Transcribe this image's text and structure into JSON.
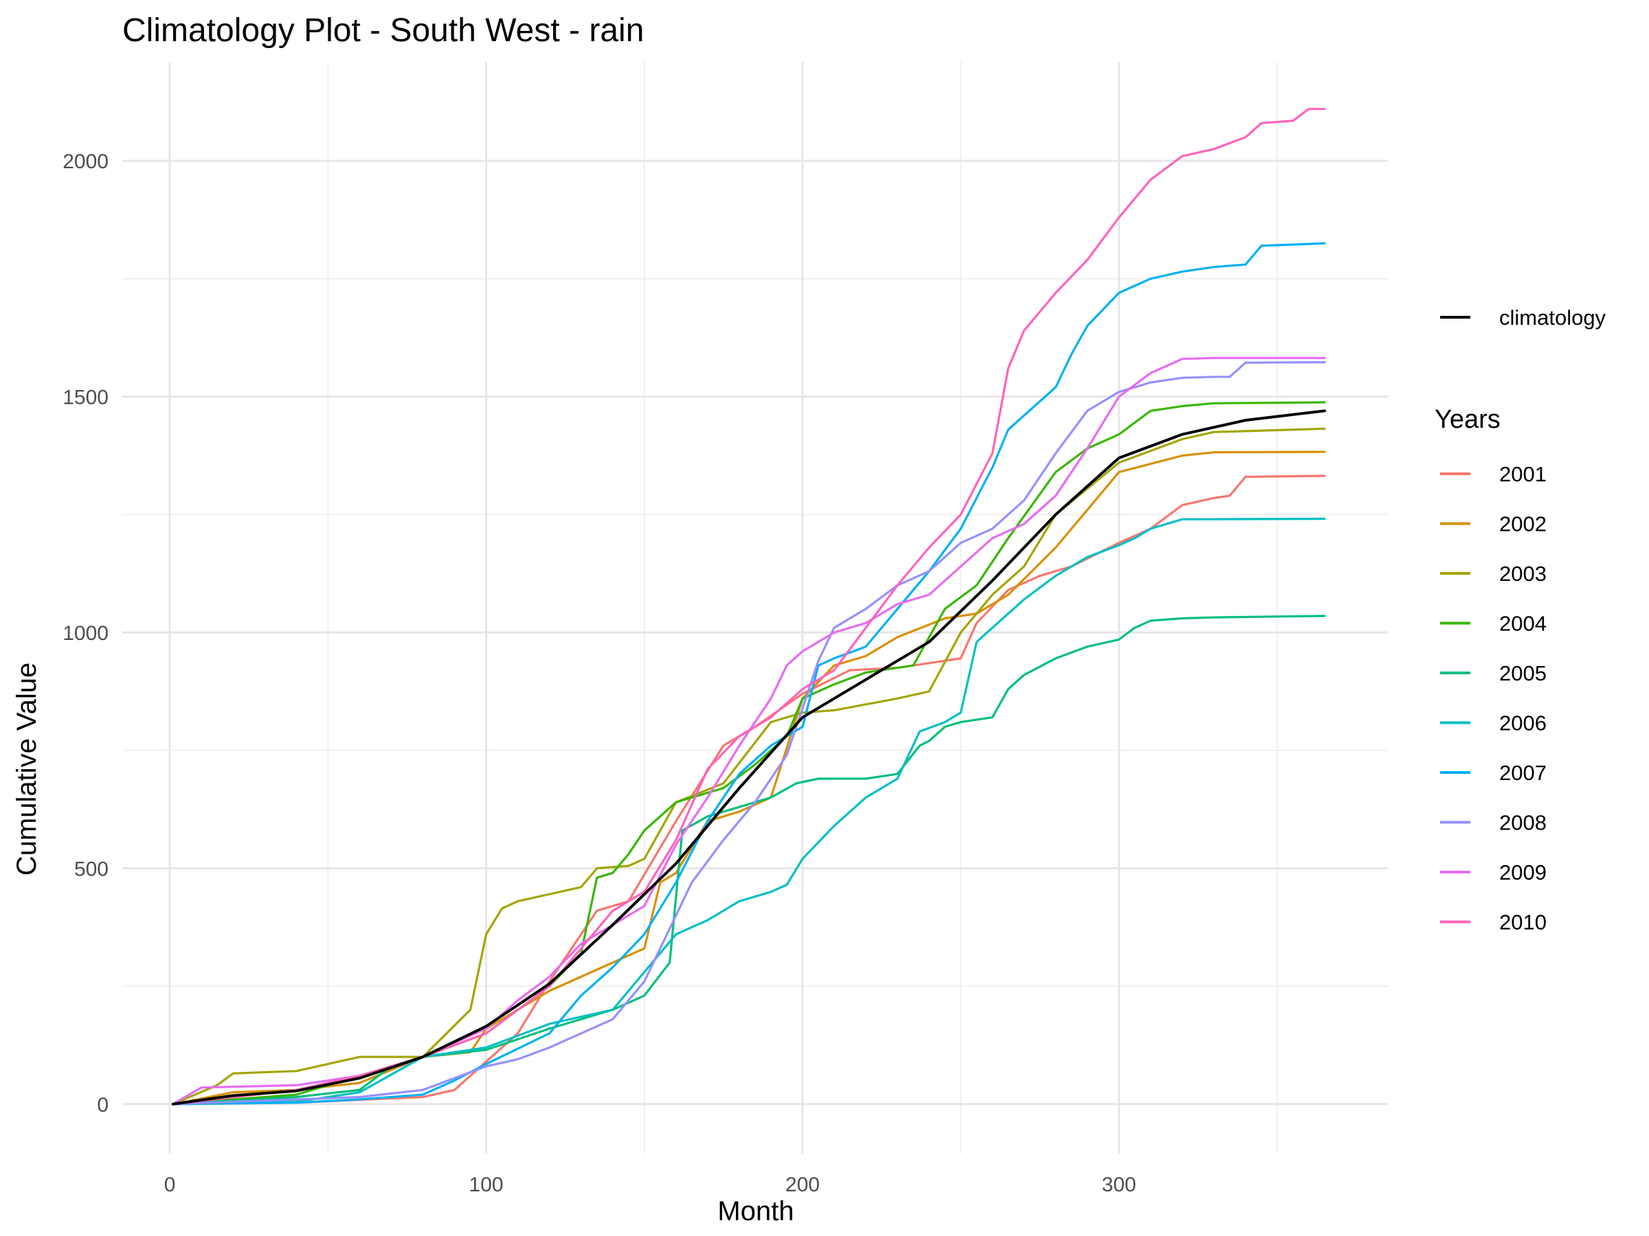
{
  "chart_data": {
    "type": "line",
    "title": "Climatology Plot - South West - rain",
    "xlabel": "Month",
    "ylabel": "Cumulative Value",
    "xlim": [
      -15,
      385
    ],
    "ylim": [
      -105,
      2210
    ],
    "x_ticks": [
      0,
      100,
      200,
      300
    ],
    "y_ticks": [
      0,
      500,
      1000,
      1500,
      2000
    ],
    "grid": true,
    "legend": {
      "position": "right",
      "climatology_label": "climatology",
      "title": "Years"
    },
    "climatology": {
      "name": "climatology",
      "color": "#000000",
      "x": [
        1,
        20,
        40,
        60,
        80,
        100,
        120,
        140,
        160,
        180,
        200,
        220,
        240,
        260,
        280,
        300,
        320,
        340,
        365
      ],
      "y": [
        0,
        18,
        28,
        55,
        100,
        165,
        255,
        380,
        510,
        670,
        820,
        900,
        980,
        1110,
        1250,
        1370,
        1420,
        1450,
        1470
      ]
    },
    "series": [
      {
        "name": "2001",
        "color": "#F8766D",
        "x": [
          1,
          40,
          80,
          90,
          100,
          110,
          120,
          135,
          145,
          160,
          175,
          185,
          200,
          215,
          230,
          250,
          255,
          265,
          275,
          285,
          300,
          310,
          320,
          330,
          335,
          340,
          365
        ],
        "y": [
          0,
          3,
          15,
          30,
          90,
          150,
          260,
          410,
          430,
          600,
          760,
          800,
          870,
          920,
          925,
          945,
          1020,
          1090,
          1120,
          1140,
          1190,
          1220,
          1270,
          1285,
          1290,
          1330,
          1332
        ]
      },
      {
        "name": "2002",
        "color": "#D89000",
        "x": [
          1,
          20,
          40,
          60,
          80,
          95,
          100,
          120,
          140,
          150,
          155,
          160,
          170,
          180,
          190,
          200,
          210,
          220,
          230,
          245,
          255,
          265,
          280,
          300,
          320,
          330,
          365
        ],
        "y": [
          0,
          25,
          30,
          45,
          100,
          110,
          160,
          240,
          300,
          330,
          470,
          490,
          600,
          620,
          650,
          860,
          930,
          950,
          990,
          1030,
          1040,
          1080,
          1180,
          1340,
          1375,
          1382,
          1383
        ]
      },
      {
        "name": "2003",
        "color": "#A3A500",
        "x": [
          1,
          15,
          20,
          40,
          60,
          80,
          95,
          100,
          105,
          110,
          130,
          135,
          145,
          150,
          160,
          175,
          190,
          200,
          210,
          230,
          240,
          250,
          260,
          270,
          280,
          300,
          320,
          330,
          365
        ],
        "y": [
          0,
          40,
          65,
          70,
          100,
          100,
          200,
          360,
          415,
          430,
          460,
          500,
          505,
          520,
          640,
          680,
          810,
          830,
          835,
          860,
          875,
          1000,
          1080,
          1140,
          1250,
          1360,
          1410,
          1425,
          1432
        ]
      },
      {
        "name": "2004",
        "color": "#39B600",
        "x": [
          1,
          40,
          60,
          80,
          100,
          120,
          130,
          135,
          140,
          145,
          150,
          160,
          175,
          185,
          195,
          200,
          210,
          220,
          235,
          245,
          255,
          265,
          280,
          290,
          300,
          310,
          320,
          330,
          365
        ],
        "y": [
          0,
          20,
          60,
          100,
          150,
          250,
          320,
          480,
          490,
          530,
          580,
          640,
          670,
          720,
          780,
          860,
          890,
          915,
          930,
          1050,
          1100,
          1200,
          1340,
          1390,
          1420,
          1470,
          1480,
          1486,
          1488
        ]
      },
      {
        "name": "2005",
        "color": "#00BF7D",
        "x": [
          1,
          40,
          60,
          70,
          80,
          100,
          120,
          140,
          150,
          158,
          162,
          170,
          180,
          190,
          198,
          205,
          210,
          220,
          230,
          237,
          240,
          245,
          250,
          260,
          265,
          270,
          280,
          290,
          300,
          305,
          310,
          320,
          330,
          365
        ],
        "y": [
          0,
          15,
          30,
          80,
          100,
          115,
          160,
          200,
          230,
          300,
          580,
          610,
          630,
          650,
          680,
          690,
          690,
          690,
          700,
          760,
          770,
          800,
          810,
          820,
          880,
          910,
          945,
          970,
          985,
          1010,
          1025,
          1030,
          1032,
          1035
        ]
      },
      {
        "name": "2006",
        "color": "#00BFC4",
        "x": [
          1,
          40,
          60,
          80,
          100,
          120,
          140,
          150,
          160,
          170,
          180,
          190,
          195,
          200,
          210,
          220,
          230,
          237,
          245,
          250,
          255,
          260,
          270,
          280,
          290,
          300,
          305,
          310,
          320,
          330,
          365
        ],
        "y": [
          0,
          5,
          25,
          100,
          120,
          170,
          200,
          280,
          360,
          390,
          430,
          450,
          465,
          520,
          590,
          650,
          690,
          790,
          810,
          830,
          980,
          1010,
          1070,
          1120,
          1160,
          1185,
          1200,
          1220,
          1240,
          1240,
          1241
        ]
      },
      {
        "name": "2007",
        "color": "#00B0F6",
        "x": [
          1,
          40,
          60,
          80,
          90,
          100,
          120,
          130,
          140,
          150,
          160,
          170,
          180,
          190,
          200,
          205,
          210,
          220,
          230,
          240,
          250,
          260,
          265,
          270,
          280,
          285,
          290,
          300,
          310,
          320,
          330,
          340,
          345,
          365
        ],
        "y": [
          0,
          3,
          10,
          20,
          50,
          85,
          150,
          230,
          290,
          360,
          470,
          600,
          700,
          760,
          800,
          930,
          945,
          970,
          1050,
          1130,
          1220,
          1350,
          1430,
          1460,
          1520,
          1590,
          1650,
          1720,
          1750,
          1765,
          1775,
          1780,
          1820,
          1825
        ]
      },
      {
        "name": "2008",
        "color": "#9590FF",
        "x": [
          1,
          60,
          80,
          100,
          110,
          120,
          130,
          140,
          150,
          160,
          165,
          175,
          185,
          195,
          205,
          210,
          220,
          230,
          240,
          250,
          260,
          270,
          280,
          290,
          300,
          310,
          320,
          330,
          335,
          340,
          365
        ],
        "y": [
          0,
          15,
          30,
          80,
          95,
          120,
          150,
          180,
          260,
          400,
          470,
          560,
          640,
          740,
          940,
          1010,
          1050,
          1100,
          1130,
          1190,
          1220,
          1280,
          1380,
          1470,
          1510,
          1530,
          1540,
          1542,
          1542,
          1572,
          1573
        ]
      },
      {
        "name": "2009",
        "color": "#E76BF3",
        "x": [
          1,
          10,
          40,
          60,
          80,
          100,
          110,
          120,
          130,
          140,
          150,
          160,
          170,
          180,
          190,
          195,
          200,
          210,
          220,
          230,
          240,
          250,
          260,
          270,
          280,
          290,
          300,
          310,
          320,
          330,
          365
        ],
        "y": [
          0,
          35,
          40,
          60,
          100,
          160,
          220,
          270,
          340,
          380,
          420,
          550,
          650,
          760,
          860,
          930,
          960,
          1000,
          1020,
          1060,
          1080,
          1140,
          1200,
          1230,
          1290,
          1390,
          1500,
          1550,
          1580,
          1582,
          1582
        ]
      },
      {
        "name": "2010",
        "color": "#FF62BC",
        "x": [
          1,
          40,
          60,
          80,
          100,
          120,
          130,
          140,
          150,
          160,
          170,
          180,
          190,
          200,
          210,
          220,
          230,
          240,
          250,
          260,
          265,
          270,
          280,
          290,
          300,
          310,
          320,
          330,
          340,
          345,
          355,
          360,
          365
        ],
        "y": [
          0,
          30,
          60,
          100,
          150,
          250,
          330,
          410,
          450,
          560,
          710,
          780,
          820,
          880,
          920,
          1010,
          1100,
          1180,
          1250,
          1380,
          1560,
          1640,
          1720,
          1790,
          1880,
          1960,
          2010,
          2025,
          2050,
          2080,
          2085,
          2110,
          2110
        ]
      }
    ]
  }
}
